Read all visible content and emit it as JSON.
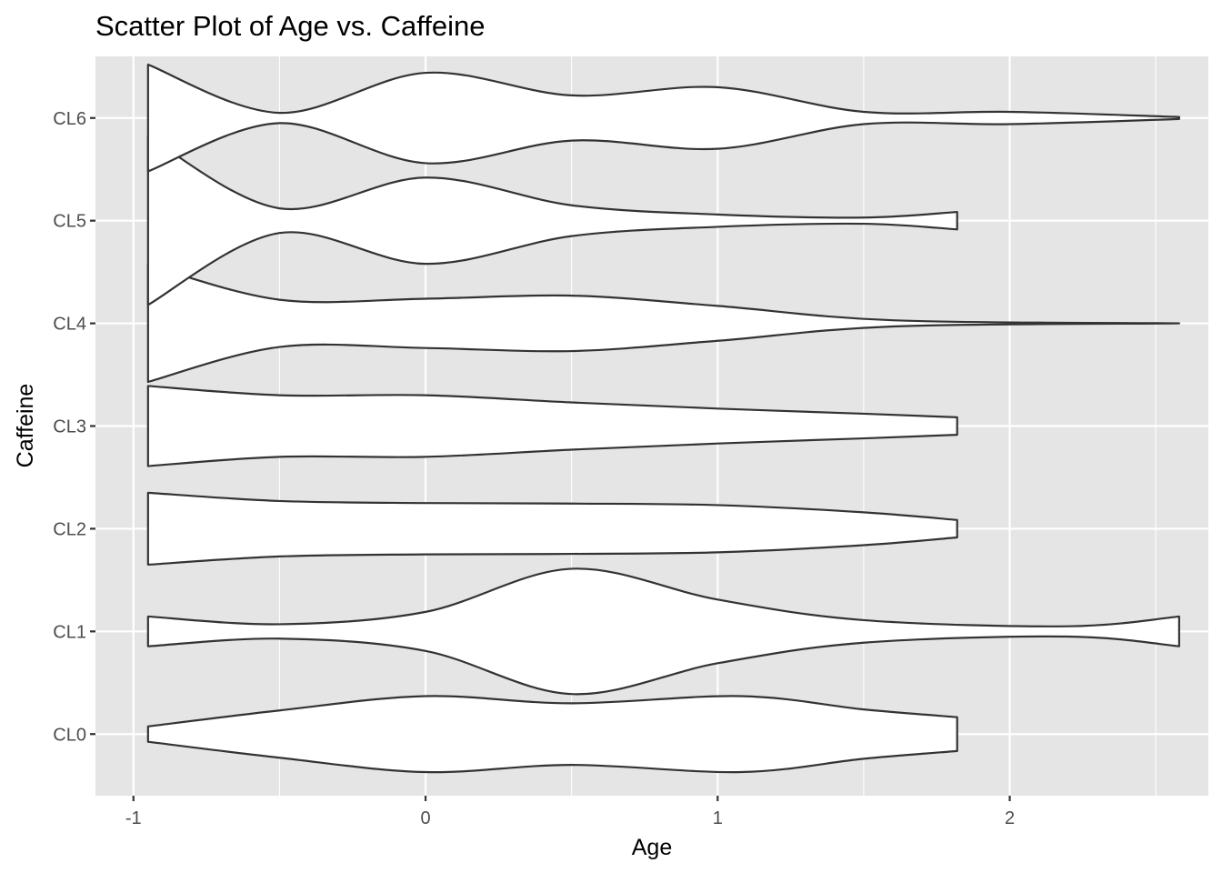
{
  "chart_data": {
    "type": "violin",
    "title": "Scatter Plot of Age vs. Caffeine",
    "xlabel": "Age",
    "ylabel": "Caffeine",
    "xlim": [
      -1.13,
      2.68
    ],
    "x_ticks": [
      -1,
      0,
      1,
      2
    ],
    "x_tick_labels": [
      "-1",
      "0",
      "1",
      "2"
    ],
    "x_minor_grid": [
      -0.5,
      0.5,
      1.5,
      2.5
    ],
    "categories": [
      "CL0",
      "CL1",
      "CL2",
      "CL3",
      "CL4",
      "CL5",
      "CL6"
    ],
    "grid": true,
    "colors": {
      "panel_background": "#e5e5e5",
      "grid": "#ffffff",
      "violin_fill": "#ffffff",
      "violin_outline": "#333333"
    },
    "series": [
      {
        "category": "CL0",
        "x": [
          -0.95,
          -0.5,
          0.0,
          0.5,
          1.08,
          1.5,
          1.82
        ],
        "half_width": [
          0.075,
          0.23,
          0.37,
          0.3,
          0.37,
          0.24,
          0.165
        ]
      },
      {
        "category": "CL1",
        "x": [
          -0.95,
          -0.5,
          0.0,
          0.5,
          1.0,
          1.5,
          2.2,
          2.58
        ],
        "half_width": [
          0.145,
          0.07,
          0.19,
          0.61,
          0.31,
          0.11,
          0.05,
          0.145
        ]
      },
      {
        "category": "CL2",
        "x": [
          -0.95,
          -0.5,
          0.0,
          0.5,
          1.0,
          1.5,
          1.82
        ],
        "half_width": [
          0.35,
          0.27,
          0.25,
          0.245,
          0.23,
          0.16,
          0.085
        ]
      },
      {
        "category": "CL3",
        "x": [
          -0.95,
          -0.5,
          0.0,
          0.5,
          1.0,
          1.5,
          1.82
        ],
        "half_width": [
          0.39,
          0.3,
          0.3,
          0.23,
          0.17,
          0.12,
          0.085
        ]
      },
      {
        "category": "CL4",
        "x": [
          -0.95,
          -0.5,
          0.0,
          0.5,
          1.0,
          1.6,
          2.58
        ],
        "half_width": [
          0.57,
          0.23,
          0.24,
          0.27,
          0.17,
          0.03,
          0.0
        ]
      },
      {
        "category": "CL5",
        "x": [
          -0.95,
          -0.5,
          0.0,
          0.5,
          1.0,
          1.5,
          1.82
        ],
        "half_width": [
          0.82,
          0.12,
          0.42,
          0.15,
          0.06,
          0.03,
          0.085
        ]
      },
      {
        "category": "CL6",
        "x": [
          -0.95,
          -0.5,
          0.0,
          0.5,
          1.0,
          1.5,
          2.0,
          2.58
        ],
        "half_width": [
          0.52,
          0.05,
          0.44,
          0.22,
          0.3,
          0.06,
          0.06,
          0.01
        ]
      }
    ]
  }
}
